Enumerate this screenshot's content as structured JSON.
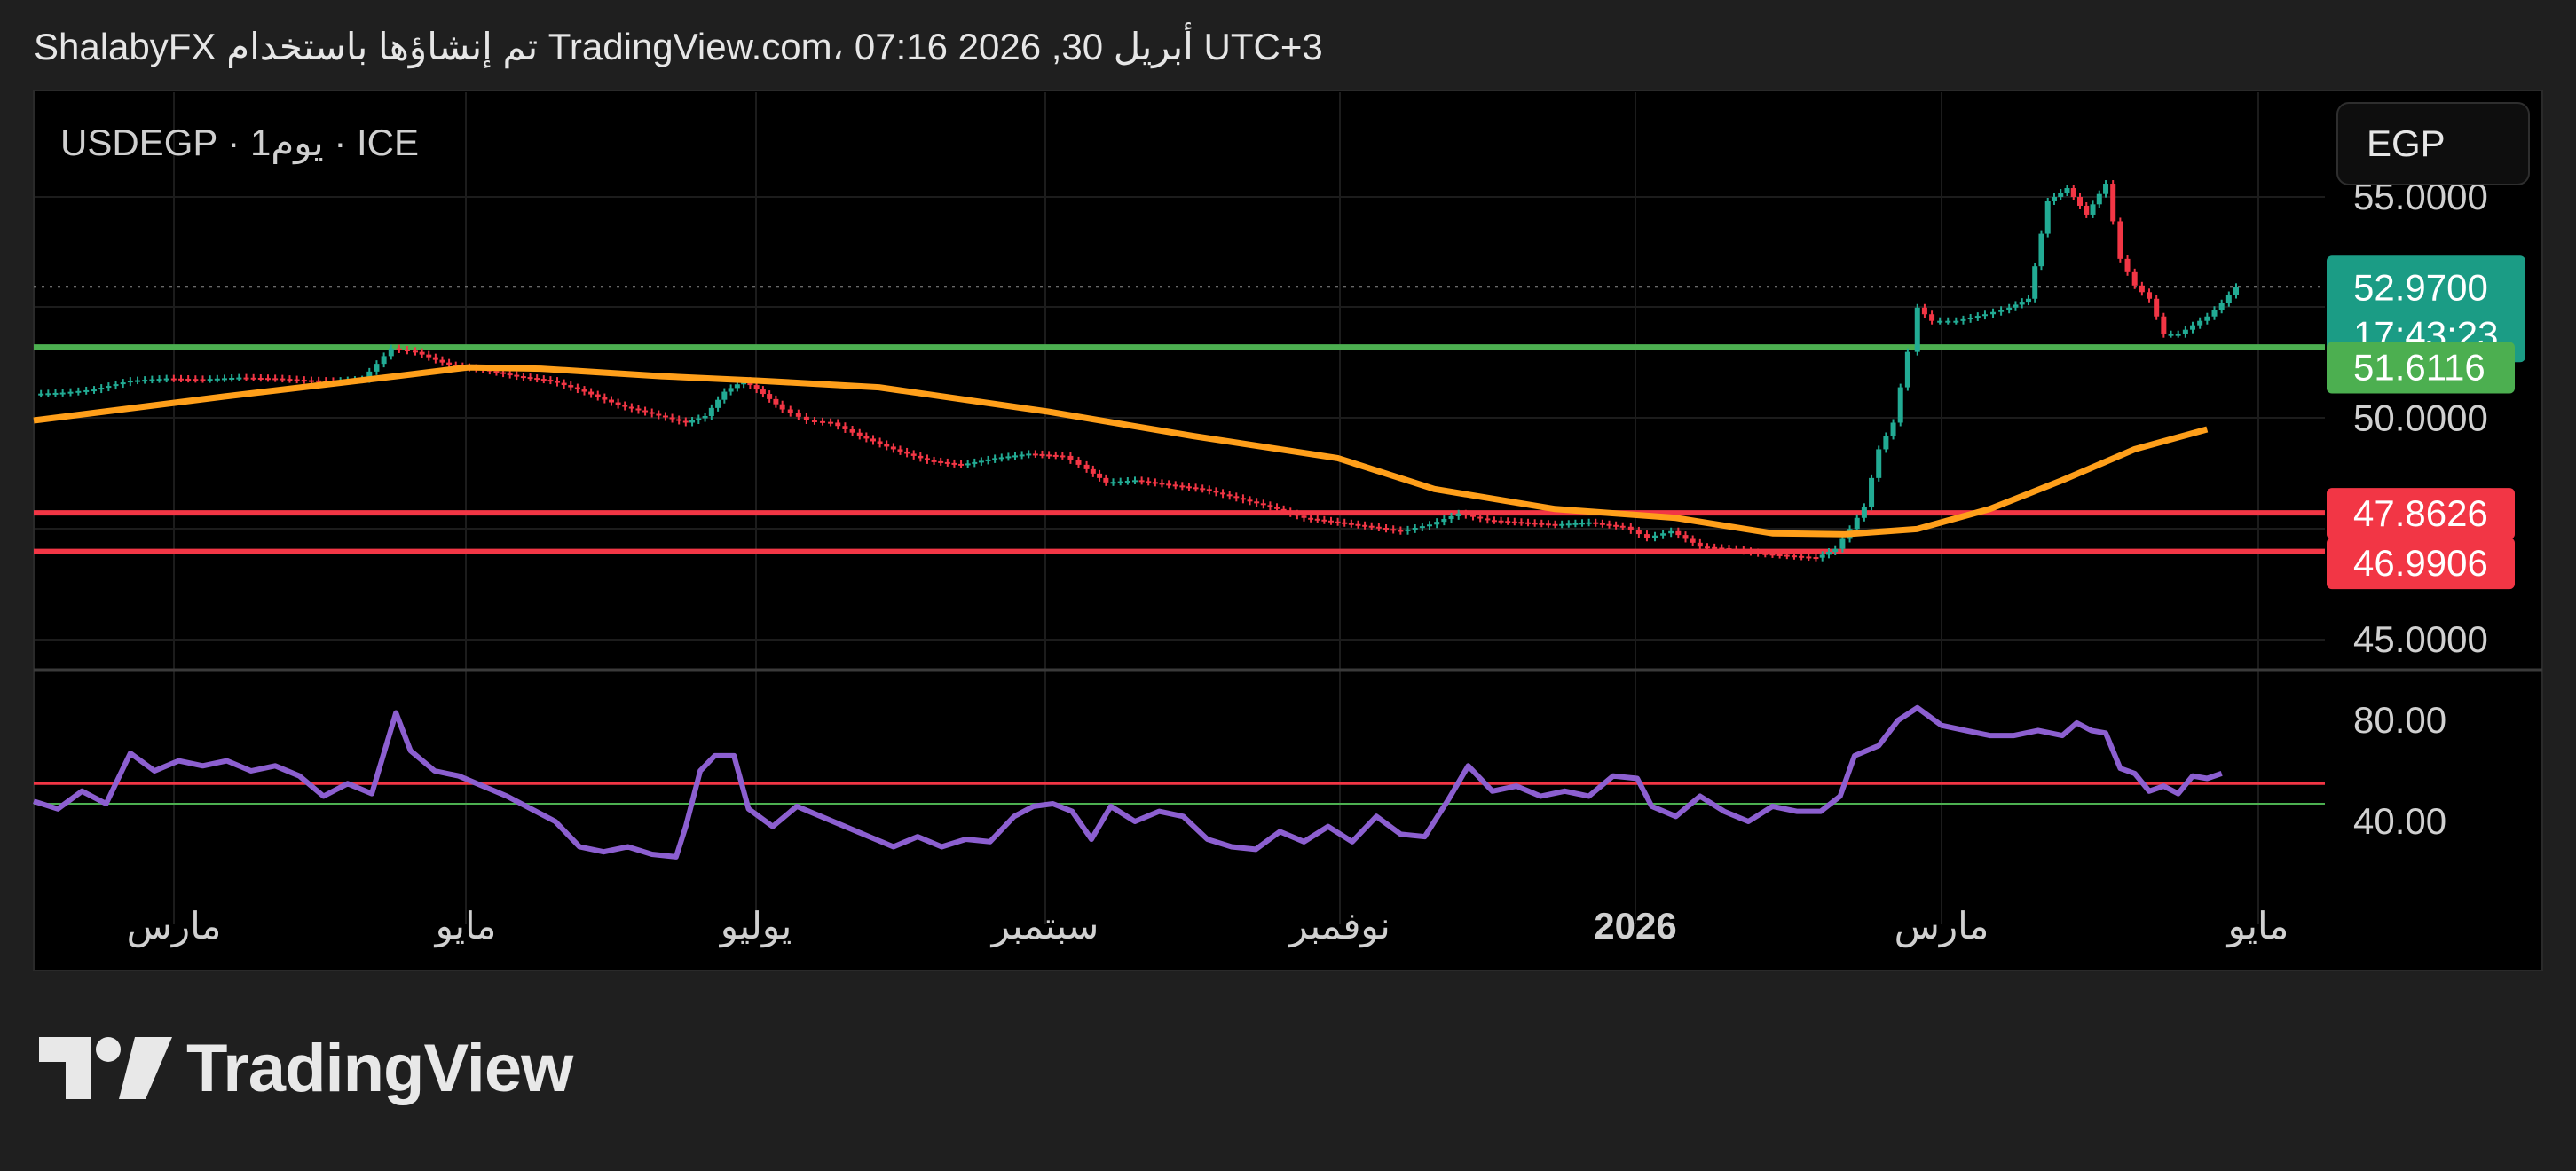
{
  "header": {
    "title": "ShalabyFX تم إنشاؤها باستخدام TradingView.com، 07:16 2026 ,30 أبريل UTC+3"
  },
  "legend": {
    "symbol": "USDEGP · 1يوم · ICE"
  },
  "currency_button": {
    "label": "EGP"
  },
  "brand": {
    "name": "TradingView"
  },
  "colors": {
    "background": "#000000",
    "page": "#1f1f1f",
    "up_candle": "#22ab94",
    "down_candle": "#f23645",
    "ma_line": "#ff9f1a",
    "rsi_line": "#8c5fd0",
    "support_line": "#4caf50",
    "resistance_line": "#f23645",
    "current_price_badge": "#1b9c85",
    "green_badge": "#4caf50",
    "red_badge": "#f23645"
  },
  "chart_data": {
    "type": "candlestick",
    "symbol": "USDEGP",
    "interval": "1 day",
    "x_ticks": [
      "مارس",
      "مايو",
      "يوليو",
      "سبتمبر",
      "نوفمبر",
      "2026",
      "مارس",
      "مايو"
    ],
    "price_axis": {
      "ticks": [
        "55.0000",
        "50.0000",
        "45.0000"
      ],
      "range": [
        44.0,
        56.0
      ]
    },
    "price_labels": {
      "last_price": "52.9700",
      "countdown": "17:43:23",
      "green_level": "51.6116",
      "red_level_1": "47.8626",
      "red_level_2": "46.9906"
    },
    "horizontal_lines": [
      {
        "kind": "support",
        "value": 51.6116
      },
      {
        "kind": "resistance",
        "value": 47.8626
      },
      {
        "kind": "resistance",
        "value": 46.9906
      },
      {
        "kind": "last-price",
        "value": 52.97
      }
    ],
    "price_series": [
      {
        "t": 0,
        "v": 50.55
      },
      {
        "t": 12,
        "v": 50.58
      },
      {
        "t": 25,
        "v": 50.65
      },
      {
        "t": 40,
        "v": 50.85
      },
      {
        "t": 55,
        "v": 50.9
      },
      {
        "t": 70,
        "v": 50.88
      },
      {
        "t": 85,
        "v": 50.92
      },
      {
        "t": 100,
        "v": 50.9
      },
      {
        "t": 112,
        "v": 50.86
      },
      {
        "t": 124,
        "v": 50.84
      },
      {
        "t": 136,
        "v": 50.88
      },
      {
        "t": 148,
        "v": 51.58
      },
      {
        "t": 158,
        "v": 51.5
      },
      {
        "t": 172,
        "v": 51.2
      },
      {
        "t": 186,
        "v": 51.1
      },
      {
        "t": 200,
        "v": 50.95
      },
      {
        "t": 214,
        "v": 50.85
      },
      {
        "t": 228,
        "v": 50.6
      },
      {
        "t": 242,
        "v": 50.3
      },
      {
        "t": 256,
        "v": 50.1
      },
      {
        "t": 270,
        "v": 49.9
      },
      {
        "t": 278,
        "v": 50.05
      },
      {
        "t": 286,
        "v": 50.6
      },
      {
        "t": 294,
        "v": 50.85
      },
      {
        "t": 302,
        "v": 50.55
      },
      {
        "t": 310,
        "v": 50.2
      },
      {
        "t": 320,
        "v": 49.95
      },
      {
        "t": 330,
        "v": 49.9
      },
      {
        "t": 342,
        "v": 49.6
      },
      {
        "t": 356,
        "v": 49.3
      },
      {
        "t": 370,
        "v": 49.05
      },
      {
        "t": 384,
        "v": 48.95
      },
      {
        "t": 398,
        "v": 49.1
      },
      {
        "t": 412,
        "v": 49.2
      },
      {
        "t": 426,
        "v": 49.15
      },
      {
        "t": 436,
        "v": 48.85
      },
      {
        "t": 444,
        "v": 48.55
      },
      {
        "t": 456,
        "v": 48.6
      },
      {
        "t": 470,
        "v": 48.5
      },
      {
        "t": 484,
        "v": 48.4
      },
      {
        "t": 498,
        "v": 48.2
      },
      {
        "t": 512,
        "v": 48.0
      },
      {
        "t": 526,
        "v": 47.75
      },
      {
        "t": 540,
        "v": 47.65
      },
      {
        "t": 554,
        "v": 47.55
      },
      {
        "t": 566,
        "v": 47.45
      },
      {
        "t": 578,
        "v": 47.6
      },
      {
        "t": 590,
        "v": 47.85
      },
      {
        "t": 602,
        "v": 47.7
      },
      {
        "t": 616,
        "v": 47.65
      },
      {
        "t": 630,
        "v": 47.6
      },
      {
        "t": 644,
        "v": 47.65
      },
      {
        "t": 658,
        "v": 47.55
      },
      {
        "t": 668,
        "v": 47.3
      },
      {
        "t": 678,
        "v": 47.45
      },
      {
        "t": 690,
        "v": 47.1
      },
      {
        "t": 702,
        "v": 47.05
      },
      {
        "t": 714,
        "v": 46.95
      },
      {
        "t": 726,
        "v": 46.9
      },
      {
        "t": 738,
        "v": 46.85
      },
      {
        "t": 746,
        "v": 47.05
      },
      {
        "t": 752,
        "v": 47.5
      },
      {
        "t": 758,
        "v": 48.0
      },
      {
        "t": 764,
        "v": 49.3
      },
      {
        "t": 770,
        "v": 49.9
      },
      {
        "t": 776,
        "v": 51.5
      },
      {
        "t": 780,
        "v": 52.5
      },
      {
        "t": 786,
        "v": 52.2
      },
      {
        "t": 796,
        "v": 52.2
      },
      {
        "t": 808,
        "v": 52.35
      },
      {
        "t": 818,
        "v": 52.5
      },
      {
        "t": 826,
        "v": 52.7
      },
      {
        "t": 834,
        "v": 54.9
      },
      {
        "t": 842,
        "v": 55.2
      },
      {
        "t": 850,
        "v": 54.6
      },
      {
        "t": 858,
        "v": 55.3
      },
      {
        "t": 864,
        "v": 53.6
      },
      {
        "t": 870,
        "v": 53.0
      },
      {
        "t": 876,
        "v": 52.7
      },
      {
        "t": 882,
        "v": 51.9
      },
      {
        "t": 888,
        "v": 51.9
      },
      {
        "t": 894,
        "v": 52.1
      },
      {
        "t": 900,
        "v": 52.3
      },
      {
        "t": 906,
        "v": 52.6
      },
      {
        "t": 912,
        "v": 52.97
      }
    ],
    "moving_average": [
      {
        "t": 0,
        "v": 49.95
      },
      {
        "t": 80,
        "v": 50.5
      },
      {
        "t": 150,
        "v": 50.95
      },
      {
        "t": 180,
        "v": 51.15
      },
      {
        "t": 210,
        "v": 51.12
      },
      {
        "t": 260,
        "v": 50.95
      },
      {
        "t": 300,
        "v": 50.85
      },
      {
        "t": 350,
        "v": 50.7
      },
      {
        "t": 420,
        "v": 50.15
      },
      {
        "t": 480,
        "v": 49.6
      },
      {
        "t": 540,
        "v": 49.1
      },
      {
        "t": 580,
        "v": 48.4
      },
      {
        "t": 630,
        "v": 47.95
      },
      {
        "t": 680,
        "v": 47.75
      },
      {
        "t": 720,
        "v": 47.4
      },
      {
        "t": 750,
        "v": 47.38
      },
      {
        "t": 780,
        "v": 47.5
      },
      {
        "t": 810,
        "v": 47.95
      },
      {
        "t": 840,
        "v": 48.6
      },
      {
        "t": 870,
        "v": 49.3
      },
      {
        "t": 900,
        "v": 49.75
      }
    ],
    "rsi": {
      "axis_ticks": [
        "80.00",
        "40.00"
      ],
      "range": [
        20,
        100
      ],
      "levels": [
        55,
        47
      ],
      "values": [
        {
          "t": 0,
          "v": 48
        },
        {
          "t": 10,
          "v": 45
        },
        {
          "t": 20,
          "v": 52
        },
        {
          "t": 30,
          "v": 47
        },
        {
          "t": 40,
          "v": 67
        },
        {
          "t": 50,
          "v": 60
        },
        {
          "t": 60,
          "v": 64
        },
        {
          "t": 70,
          "v": 62
        },
        {
          "t": 80,
          "v": 64
        },
        {
          "t": 90,
          "v": 60
        },
        {
          "t": 100,
          "v": 62
        },
        {
          "t": 110,
          "v": 58
        },
        {
          "t": 120,
          "v": 50
        },
        {
          "t": 130,
          "v": 55
        },
        {
          "t": 140,
          "v": 51
        },
        {
          "t": 150,
          "v": 83
        },
        {
          "t": 156,
          "v": 68
        },
        {
          "t": 166,
          "v": 60
        },
        {
          "t": 176,
          "v": 58
        },
        {
          "t": 186,
          "v": 54
        },
        {
          "t": 196,
          "v": 50
        },
        {
          "t": 206,
          "v": 45
        },
        {
          "t": 216,
          "v": 40
        },
        {
          "t": 226,
          "v": 30
        },
        {
          "t": 236,
          "v": 28
        },
        {
          "t": 246,
          "v": 30
        },
        {
          "t": 256,
          "v": 27
        },
        {
          "t": 266,
          "v": 26
        },
        {
          "t": 270,
          "v": 38
        },
        {
          "t": 276,
          "v": 60
        },
        {
          "t": 282,
          "v": 66
        },
        {
          "t": 290,
          "v": 66
        },
        {
          "t": 296,
          "v": 45
        },
        {
          "t": 306,
          "v": 38
        },
        {
          "t": 316,
          "v": 46
        },
        {
          "t": 326,
          "v": 42
        },
        {
          "t": 336,
          "v": 38
        },
        {
          "t": 346,
          "v": 34
        },
        {
          "t": 356,
          "v": 30
        },
        {
          "t": 366,
          "v": 34
        },
        {
          "t": 376,
          "v": 30
        },
        {
          "t": 386,
          "v": 33
        },
        {
          "t": 396,
          "v": 32
        },
        {
          "t": 406,
          "v": 42
        },
        {
          "t": 414,
          "v": 46
        },
        {
          "t": 422,
          "v": 47
        },
        {
          "t": 430,
          "v": 44
        },
        {
          "t": 438,
          "v": 33
        },
        {
          "t": 446,
          "v": 46
        },
        {
          "t": 456,
          "v": 40
        },
        {
          "t": 466,
          "v": 44
        },
        {
          "t": 476,
          "v": 42
        },
        {
          "t": 486,
          "v": 33
        },
        {
          "t": 496,
          "v": 30
        },
        {
          "t": 506,
          "v": 29
        },
        {
          "t": 516,
          "v": 36
        },
        {
          "t": 526,
          "v": 32
        },
        {
          "t": 536,
          "v": 38
        },
        {
          "t": 546,
          "v": 32
        },
        {
          "t": 556,
          "v": 42
        },
        {
          "t": 566,
          "v": 35
        },
        {
          "t": 576,
          "v": 34
        },
        {
          "t": 586,
          "v": 49
        },
        {
          "t": 594,
          "v": 62
        },
        {
          "t": 604,
          "v": 52
        },
        {
          "t": 614,
          "v": 54
        },
        {
          "t": 624,
          "v": 50
        },
        {
          "t": 634,
          "v": 52
        },
        {
          "t": 644,
          "v": 50
        },
        {
          "t": 654,
          "v": 58
        },
        {
          "t": 664,
          "v": 57
        },
        {
          "t": 670,
          "v": 46
        },
        {
          "t": 680,
          "v": 42
        },
        {
          "t": 690,
          "v": 50
        },
        {
          "t": 700,
          "v": 44
        },
        {
          "t": 710,
          "v": 40
        },
        {
          "t": 720,
          "v": 46
        },
        {
          "t": 730,
          "v": 44
        },
        {
          "t": 740,
          "v": 44
        },
        {
          "t": 748,
          "v": 50
        },
        {
          "t": 754,
          "v": 66
        },
        {
          "t": 764,
          "v": 70
        },
        {
          "t": 772,
          "v": 80
        },
        {
          "t": 780,
          "v": 85
        },
        {
          "t": 790,
          "v": 78
        },
        {
          "t": 800,
          "v": 76
        },
        {
          "t": 810,
          "v": 74
        },
        {
          "t": 820,
          "v": 74
        },
        {
          "t": 830,
          "v": 76
        },
        {
          "t": 840,
          "v": 74
        },
        {
          "t": 846,
          "v": 79
        },
        {
          "t": 852,
          "v": 76
        },
        {
          "t": 858,
          "v": 75
        },
        {
          "t": 864,
          "v": 61
        },
        {
          "t": 870,
          "v": 59
        },
        {
          "t": 876,
          "v": 52
        },
        {
          "t": 882,
          "v": 54
        },
        {
          "t": 888,
          "v": 51
        },
        {
          "t": 894,
          "v": 58
        },
        {
          "t": 900,
          "v": 57
        },
        {
          "t": 906,
          "v": 59
        }
      ]
    }
  }
}
